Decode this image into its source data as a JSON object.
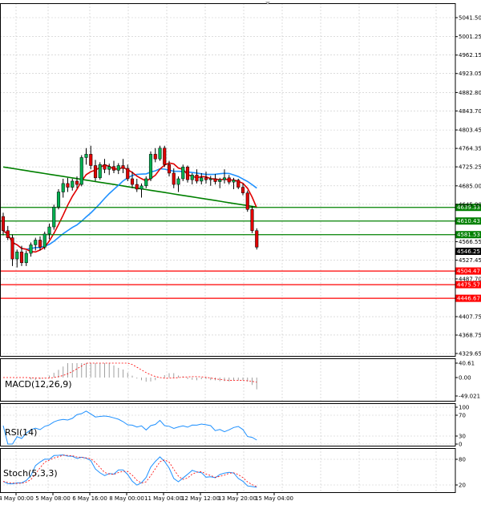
{
  "chart_data": {
    "type": "candlestick",
    "price_axis": {
      "ticks": [
        "5041.50",
        "5001.25",
        "4962.15",
        "4923.05",
        "4882.80",
        "4843.70",
        "4803.45",
        "4764.35",
        "4725.25",
        "4685.00",
        "4645.90",
        "4566.55",
        "4527.45",
        "4487.70",
        "4407.75",
        "4368.75",
        "4329.65"
      ],
      "current_price": "4546.25"
    },
    "time_axis": {
      "labels": [
        "4 May 00:00",
        "5 May 08:00",
        "6 May 16:00",
        "8 May 00:00",
        "11 May 04:00",
        "12 May 12:00",
        "13 May 20:00",
        "15 May 04:00"
      ]
    },
    "levels": [
      {
        "value": "4639.33",
        "color": "#008000"
      },
      {
        "value": "4610.43",
        "color": "#008000"
      },
      {
        "value": "4581.53",
        "color": "#008000"
      },
      {
        "value": "4504.47",
        "color": "#ff0000"
      },
      {
        "value": "4475.57",
        "color": "#ff0000"
      },
      {
        "value": "4446.67",
        "color": "#ff0000"
      }
    ],
    "candles": [
      {
        "o": 4620,
        "h": 4628,
        "l": 4580,
        "c": 4590
      },
      {
        "o": 4590,
        "h": 4600,
        "l": 4570,
        "c": 4575
      },
      {
        "o": 4575,
        "h": 4582,
        "l": 4515,
        "c": 4530
      },
      {
        "o": 4530,
        "h": 4550,
        "l": 4512,
        "c": 4545
      },
      {
        "o": 4545,
        "h": 4558,
        "l": 4515,
        "c": 4522
      },
      {
        "o": 4522,
        "h": 4548,
        "l": 4515,
        "c": 4542
      },
      {
        "o": 4542,
        "h": 4565,
        "l": 4535,
        "c": 4560
      },
      {
        "o": 4560,
        "h": 4575,
        "l": 4548,
        "c": 4570
      },
      {
        "o": 4570,
        "h": 4578,
        "l": 4548,
        "c": 4555
      },
      {
        "o": 4555,
        "h": 4588,
        "l": 4550,
        "c": 4583
      },
      {
        "o": 4583,
        "h": 4605,
        "l": 4572,
        "c": 4598
      },
      {
        "o": 4598,
        "h": 4645,
        "l": 4592,
        "c": 4640
      },
      {
        "o": 4640,
        "h": 4678,
        "l": 4635,
        "c": 4672
      },
      {
        "o": 4672,
        "h": 4700,
        "l": 4660,
        "c": 4690
      },
      {
        "o": 4690,
        "h": 4702,
        "l": 4672,
        "c": 4682
      },
      {
        "o": 4682,
        "h": 4700,
        "l": 4675,
        "c": 4695
      },
      {
        "o": 4695,
        "h": 4705,
        "l": 4680,
        "c": 4688
      },
      {
        "o": 4688,
        "h": 4750,
        "l": 4684,
        "c": 4745
      },
      {
        "o": 4745,
        "h": 4765,
        "l": 4730,
        "c": 4752
      },
      {
        "o": 4752,
        "h": 4770,
        "l": 4720,
        "c": 4728
      },
      {
        "o": 4728,
        "h": 4740,
        "l": 4695,
        "c": 4702
      },
      {
        "o": 4702,
        "h": 4735,
        "l": 4698,
        "c": 4730
      },
      {
        "o": 4730,
        "h": 4742,
        "l": 4712,
        "c": 4720
      },
      {
        "o": 4720,
        "h": 4732,
        "l": 4708,
        "c": 4726
      },
      {
        "o": 4726,
        "h": 4738,
        "l": 4712,
        "c": 4718
      },
      {
        "o": 4718,
        "h": 4733,
        "l": 4710,
        "c": 4728
      },
      {
        "o": 4728,
        "h": 4742,
        "l": 4712,
        "c": 4722
      },
      {
        "o": 4722,
        "h": 4730,
        "l": 4695,
        "c": 4700
      },
      {
        "o": 4700,
        "h": 4715,
        "l": 4680,
        "c": 4688
      },
      {
        "o": 4688,
        "h": 4700,
        "l": 4672,
        "c": 4678
      },
      {
        "o": 4678,
        "h": 4690,
        "l": 4660,
        "c": 4685
      },
      {
        "o": 4685,
        "h": 4705,
        "l": 4680,
        "c": 4700
      },
      {
        "o": 4700,
        "h": 4758,
        "l": 4695,
        "c": 4752
      },
      {
        "o": 4752,
        "h": 4765,
        "l": 4735,
        "c": 4742
      },
      {
        "o": 4742,
        "h": 4770,
        "l": 4738,
        "c": 4765
      },
      {
        "o": 4765,
        "h": 4770,
        "l": 4725,
        "c": 4730
      },
      {
        "o": 4730,
        "h": 4738,
        "l": 4705,
        "c": 4712
      },
      {
        "o": 4712,
        "h": 4722,
        "l": 4680,
        "c": 4688
      },
      {
        "o": 4688,
        "h": 4705,
        "l": 4672,
        "c": 4700
      },
      {
        "o": 4700,
        "h": 4730,
        "l": 4695,
        "c": 4725
      },
      {
        "o": 4725,
        "h": 4728,
        "l": 4692,
        "c": 4698
      },
      {
        "o": 4698,
        "h": 4712,
        "l": 4688,
        "c": 4708
      },
      {
        "o": 4708,
        "h": 4720,
        "l": 4690,
        "c": 4695
      },
      {
        "o": 4695,
        "h": 4712,
        "l": 4688,
        "c": 4702
      },
      {
        "o": 4702,
        "h": 4715,
        "l": 4690,
        "c": 4698
      },
      {
        "o": 4698,
        "h": 4706,
        "l": 4685,
        "c": 4700
      },
      {
        "o": 4700,
        "h": 4710,
        "l": 4688,
        "c": 4694
      },
      {
        "o": 4694,
        "h": 4702,
        "l": 4680,
        "c": 4698
      },
      {
        "o": 4698,
        "h": 4720,
        "l": 4690,
        "c": 4702
      },
      {
        "o": 4702,
        "h": 4708,
        "l": 4688,
        "c": 4693
      },
      {
        "o": 4693,
        "h": 4702,
        "l": 4678,
        "c": 4697
      },
      {
        "o": 4697,
        "h": 4700,
        "l": 4678,
        "c": 4682
      },
      {
        "o": 4682,
        "h": 4690,
        "l": 4665,
        "c": 4670
      },
      {
        "o": 4670,
        "h": 4675,
        "l": 4630,
        "c": 4635
      },
      {
        "o": 4635,
        "h": 4642,
        "l": 4585,
        "c": 4590
      },
      {
        "o": 4590,
        "h": 4595,
        "l": 4550,
        "c": 4555
      }
    ],
    "indicators": [
      {
        "label": "MACD(12,26,9)",
        "ticks": [
          "40.61",
          "0.00",
          "-49.021"
        ]
      },
      {
        "label": "RSI(14)",
        "ticks": [
          "100",
          "70",
          "30",
          "0"
        ]
      },
      {
        "label": "Stoch(5,3,3)",
        "ticks": [
          "80",
          "20"
        ]
      }
    ]
  }
}
